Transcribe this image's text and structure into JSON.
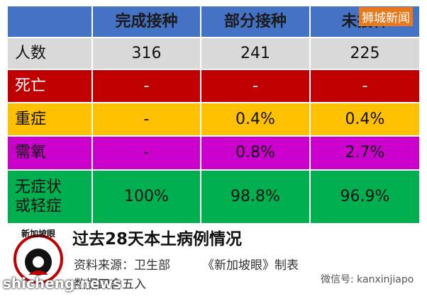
{
  "table": {
    "header": [
      "完成接种",
      "部分接种",
      "未接种"
    ],
    "rows": [
      [
        "人数",
        "316",
        "241",
        "225"
      ],
      [
        "死亡",
        "-",
        "-",
        "-"
      ],
      [
        "重症",
        "-",
        "0.4%",
        "0.4%"
      ],
      [
        "需氧",
        "-",
        "0.8%",
        "2.7%"
      ],
      [
        [
          "无症状",
          "或轻症"
        ],
        "100%",
        "98.8%",
        "96.9%"
      ]
    ]
  },
  "caption": {
    "title": "过去28天本土病例情况",
    "source": "资料来源：卫生部",
    "maker": "《新加坡眼》制表",
    "note": "数据四舍五入"
  },
  "logo": "新加坡眼",
  "watermarks": {
    "top": "狮城新闻",
    "bottom": "shicheng.news",
    "wechat": "微信号: kanxinjiapo"
  }
}
